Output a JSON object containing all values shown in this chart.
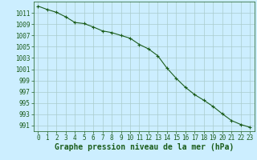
{
  "x": [
    0,
    1,
    2,
    3,
    4,
    5,
    6,
    7,
    8,
    9,
    10,
    11,
    12,
    13,
    14,
    15,
    16,
    17,
    18,
    19,
    20,
    21,
    22,
    23
  ],
  "y": [
    1012.2,
    1011.6,
    1011.1,
    1010.3,
    1009.3,
    1009.1,
    1008.5,
    1007.8,
    1007.5,
    1007.0,
    1006.5,
    1005.4,
    1004.6,
    1003.4,
    1001.2,
    999.4,
    997.8,
    996.5,
    995.5,
    994.4,
    993.1,
    991.9,
    991.2,
    990.7
  ],
  "line_color": "#1a5c1a",
  "marker": "+",
  "marker_size": 3,
  "marker_linewidth": 0.8,
  "line_width": 0.8,
  "background_color": "#cceeff",
  "grid_color": "#aacccc",
  "xlabel": "Graphe pression niveau de la mer (hPa)",
  "xlabel_fontsize": 7,
  "tick_fontsize": 5.5,
  "ylim": [
    990,
    1013
  ],
  "xlim": [
    -0.5,
    23.5
  ],
  "yticks": [
    991,
    993,
    995,
    997,
    999,
    1001,
    1003,
    1005,
    1007,
    1009,
    1011
  ],
  "xticks": [
    0,
    1,
    2,
    3,
    4,
    5,
    6,
    7,
    8,
    9,
    10,
    11,
    12,
    13,
    14,
    15,
    16,
    17,
    18,
    19,
    20,
    21,
    22,
    23
  ]
}
